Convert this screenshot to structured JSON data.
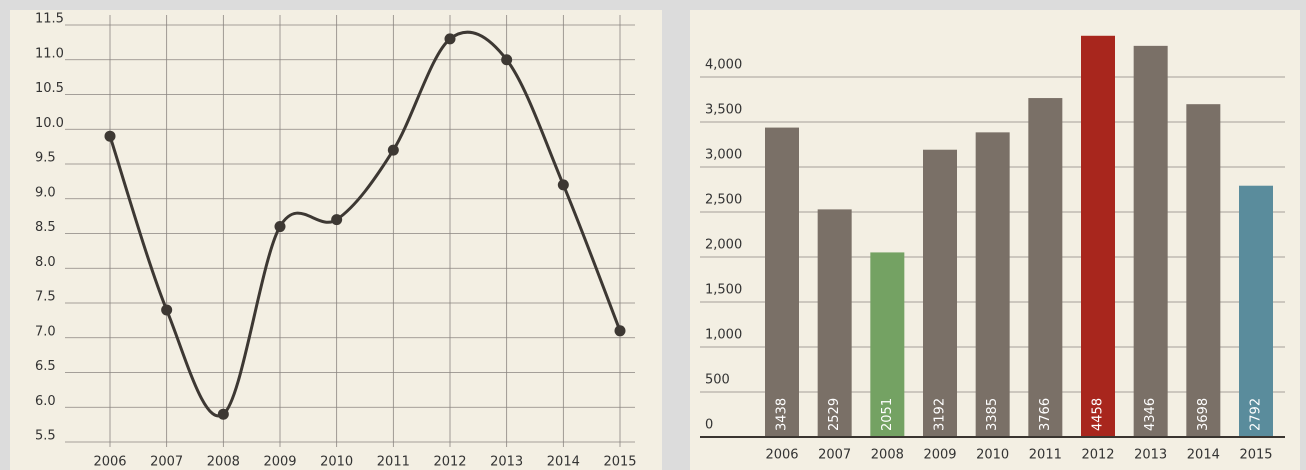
{
  "chart_data": [
    {
      "type": "line",
      "categories": [
        "2006",
        "2007",
        "2008",
        "2009",
        "2010",
        "2011",
        "2012",
        "2013",
        "2014",
        "2015"
      ],
      "values": [
        9.9,
        7.4,
        5.9,
        8.6,
        8.7,
        9.7,
        11.3,
        11.0,
        9.2,
        7.1
      ],
      "color": "#3d3833",
      "ylim": [
        5.5,
        11.5
      ],
      "yticks": [
        5.5,
        {
          "value": 6,
          "label": "6.0"
        },
        6.5,
        {
          "value": 7,
          "label": "7.0"
        },
        7.5,
        {
          "value": 8,
          "label": "8.0"
        },
        8.5,
        {
          "value": 9,
          "label": "9.0"
        },
        9.5,
        {
          "value": 10,
          "label": "10.0"
        },
        10.5,
        {
          "value": 11,
          "label": "11.0"
        },
        11.5
      ],
      "grid": true
    },
    {
      "type": "bar",
      "categories": [
        "2006",
        "2007",
        "2008",
        "2009",
        "2010",
        "2011",
        "2012",
        "2013",
        "2014",
        "2015"
      ],
      "values": [
        3438,
        2529,
        2051,
        3192,
        3385,
        3766,
        4458,
        4346,
        3698,
        2792
      ],
      "colors": [
        "#7a7067",
        "#7a7067",
        "#74a263",
        "#7a7067",
        "#7a7067",
        "#7a7067",
        "#a8261d",
        "#7a7067",
        "#7a7067",
        "#5a8c9c"
      ],
      "ylim": [
        0,
        4500
      ],
      "yticks": [
        0,
        500,
        {
          "value": 1000,
          "label": "1,000"
        },
        {
          "value": 1500,
          "label": "1,500"
        },
        {
          "value": 2000,
          "label": "2,000"
        },
        {
          "value": 2500,
          "label": "2,500"
        },
        {
          "value": 3000,
          "label": "3,000"
        },
        {
          "value": 3500,
          "label": "3,500"
        },
        {
          "value": 4000,
          "label": "4,000"
        }
      ],
      "grid": true
    }
  ]
}
